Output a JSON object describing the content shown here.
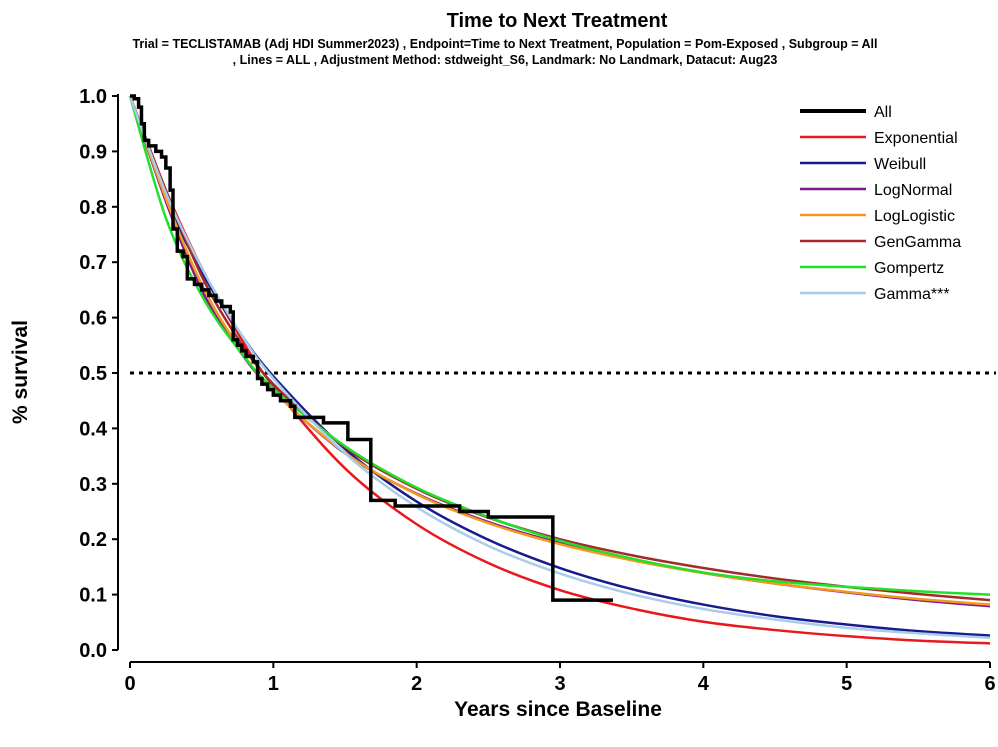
{
  "chart_data": {
    "type": "line",
    "title": "Time to Next Treatment",
    "subtitle_line1": "Trial = TECLISTAMAB (Adj HDI Summer2023) ,  Endpoint=Time to Next Treatment, Population = Pom-Exposed , Subgroup = All",
    "subtitle_line2": ", Lines = ALL  ,    Adjustment Method:  stdweight_S6, Landmark: No Landmark, Datacut: Aug23",
    "xlabel": "Years since Baseline",
    "ylabel": "% survival",
    "xlim": [
      0,
      6
    ],
    "ylim": [
      0,
      1
    ],
    "x_ticks": [
      0,
      1,
      2,
      3,
      4,
      5,
      6
    ],
    "x_tick_labels": [
      "0",
      "1",
      "2",
      "3",
      "4",
      "5",
      "6"
    ],
    "y_ticks": [
      0,
      0.1,
      0.2,
      0.3,
      0.4,
      0.5,
      0.6,
      0.7,
      0.8,
      0.9,
      1.0
    ],
    "y_tick_labels": [
      "0.0",
      "0.1",
      "0.2",
      "0.3",
      "0.4",
      "0.5",
      "0.6",
      "0.7",
      "0.8",
      "0.9",
      "1.0"
    ],
    "grid": false,
    "legend_position": "top-right",
    "reference_line": {
      "y": 0.5,
      "style": "dotted"
    },
    "km": {
      "name": "All",
      "color": "#000000",
      "steps": [
        [
          0,
          1.0
        ],
        [
          0.03,
          0.995
        ],
        [
          0.06,
          0.98
        ],
        [
          0.08,
          0.95
        ],
        [
          0.1,
          0.92
        ],
        [
          0.13,
          0.91
        ],
        [
          0.18,
          0.9
        ],
        [
          0.22,
          0.89
        ],
        [
          0.25,
          0.87
        ],
        [
          0.28,
          0.83
        ],
        [
          0.3,
          0.76
        ],
        [
          0.33,
          0.72
        ],
        [
          0.37,
          0.71
        ],
        [
          0.4,
          0.67
        ],
        [
          0.45,
          0.66
        ],
        [
          0.5,
          0.65
        ],
        [
          0.55,
          0.64
        ],
        [
          0.6,
          0.63
        ],
        [
          0.64,
          0.62
        ],
        [
          0.7,
          0.61
        ],
        [
          0.72,
          0.56
        ],
        [
          0.75,
          0.55
        ],
        [
          0.78,
          0.54
        ],
        [
          0.81,
          0.53
        ],
        [
          0.86,
          0.52
        ],
        [
          0.89,
          0.49
        ],
        [
          0.92,
          0.48
        ],
        [
          0.96,
          0.47
        ],
        [
          1.0,
          0.46
        ],
        [
          1.05,
          0.45
        ],
        [
          1.12,
          0.44
        ],
        [
          1.15,
          0.42
        ],
        [
          1.3,
          0.42
        ],
        [
          1.35,
          0.41
        ],
        [
          1.52,
          0.38
        ],
        [
          1.68,
          0.27
        ],
        [
          1.85,
          0.26
        ],
        [
          2.3,
          0.25
        ],
        [
          2.5,
          0.24
        ],
        [
          2.95,
          0.09
        ],
        [
          3.37,
          0.09
        ]
      ]
    },
    "series": [
      {
        "name": "Exponential",
        "color": "#e8181d",
        "x": [
          0,
          0.25,
          0.5,
          0.75,
          1,
          1.5,
          2,
          2.5,
          3,
          3.5,
          4,
          4.5,
          5,
          5.5,
          6
        ],
        "values": [
          1.0,
          0.83,
          0.69,
          0.573,
          0.476,
          0.328,
          0.227,
          0.157,
          0.108,
          0.075,
          0.051,
          0.036,
          0.025,
          0.017,
          0.012
        ]
      },
      {
        "name": "Weibull",
        "color": "#1a1a8f",
        "x": [
          0,
          0.25,
          0.5,
          0.75,
          1,
          1.5,
          2,
          2.5,
          3,
          3.5,
          4,
          4.5,
          5,
          5.5,
          6
        ],
        "values": [
          1.0,
          0.815,
          0.683,
          0.579,
          0.494,
          0.363,
          0.268,
          0.199,
          0.148,
          0.11,
          0.082,
          0.061,
          0.046,
          0.034,
          0.026
        ]
      },
      {
        "name": "LogNormal",
        "color": "#7a1a8f",
        "x": [
          0,
          0.25,
          0.5,
          0.75,
          1,
          1.5,
          2,
          2.5,
          3,
          3.5,
          4,
          4.5,
          5,
          5.5,
          6
        ],
        "values": [
          1.0,
          0.81,
          0.65,
          0.545,
          0.468,
          0.355,
          0.282,
          0.231,
          0.193,
          0.163,
          0.139,
          0.12,
          0.104,
          0.09,
          0.079
        ]
      },
      {
        "name": "LogLogistic",
        "color": "#f39a1e",
        "x": [
          0,
          0.25,
          0.5,
          0.75,
          1,
          1.5,
          2,
          2.5,
          3,
          3.5,
          4,
          4.5,
          5,
          5.5,
          6
        ],
        "values": [
          1.0,
          0.815,
          0.66,
          0.55,
          0.468,
          0.356,
          0.281,
          0.229,
          0.191,
          0.162,
          0.139,
          0.12,
          0.105,
          0.092,
          0.082
        ]
      },
      {
        "name": "GenGamma",
        "color": "#a52a2a",
        "x": [
          0,
          0.25,
          0.5,
          0.75,
          1,
          1.5,
          2,
          2.5,
          3,
          3.5,
          4,
          4.5,
          5,
          5.5,
          6
        ],
        "values": [
          1.0,
          0.83,
          0.675,
          0.563,
          0.48,
          0.366,
          0.291,
          0.239,
          0.2,
          0.171,
          0.148,
          0.129,
          0.114,
          0.101,
          0.09
        ]
      },
      {
        "name": "Gompertz",
        "color": "#22e02a",
        "x": [
          0,
          0.25,
          0.5,
          0.75,
          1,
          1.5,
          2,
          2.5,
          3,
          3.5,
          4,
          4.5,
          5,
          5.5,
          6
        ],
        "values": [
          1.0,
          0.78,
          0.64,
          0.545,
          0.472,
          0.368,
          0.293,
          0.24,
          0.197,
          0.165,
          0.14,
          0.124,
          0.114,
          0.106,
          0.1
        ]
      },
      {
        "name": "Gamma***",
        "color": "#a9cde8",
        "x": [
          0,
          0.25,
          0.5,
          0.75,
          1,
          1.5,
          2,
          2.5,
          3,
          3.5,
          4,
          4.5,
          5,
          5.5,
          6
        ],
        "values": [
          1.0,
          0.825,
          0.69,
          0.58,
          0.49,
          0.355,
          0.258,
          0.188,
          0.138,
          0.101,
          0.074,
          0.055,
          0.04,
          0.03,
          0.022
        ]
      }
    ]
  }
}
